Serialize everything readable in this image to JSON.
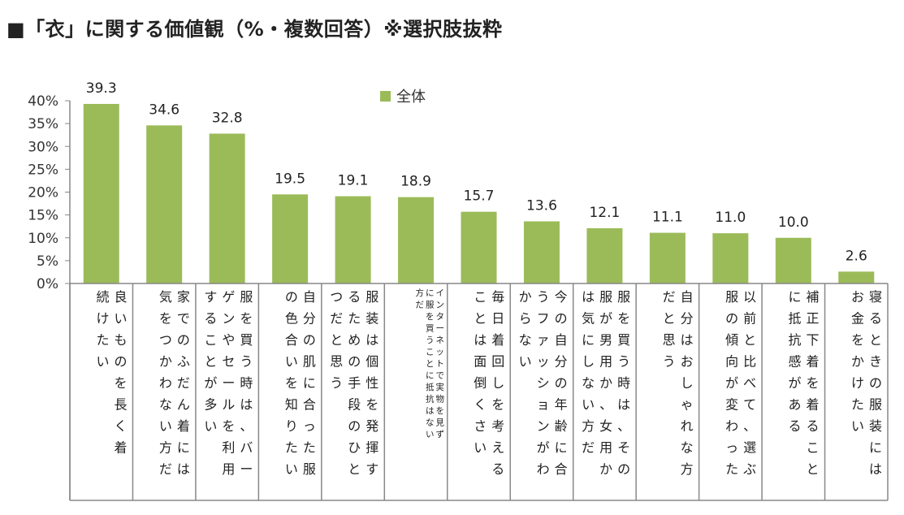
{
  "title": "■「衣」に関する価値観（%・複数回答）※選択肢抜粋",
  "chart_data": {
    "type": "bar",
    "title": "■「衣」に関する価値観（%・複数回答）※選択肢抜粋",
    "xlabel": "",
    "ylabel": "",
    "ylim": [
      0,
      40
    ],
    "yticks": [
      "0%",
      "5%",
      "10%",
      "15%",
      "20%",
      "25%",
      "30%",
      "35%",
      "40%"
    ],
    "legend_position": "top-center",
    "grid": false,
    "bar_color": "#9BBB59",
    "categories": [
      "良いものを長く着続けたい",
      "家でのふだん着には気をつかわない方だ",
      "服を買う時は、バーゲンやセールを利用することが多い",
      "自分の肌に合った服の色合いを知りたい",
      "服装は個性を発揮するための手段のひとつだと思う",
      "インターネットで実物を見ずに服を買うことに抵抗はない方だ",
      "毎日着回しを考えることは面倒くさい",
      "今の自分の年齢に合うファッションがわからない",
      "服を買う時は、その服が男用か、女用かは気にしない方だ",
      "自分はおしゃれな方だと思う",
      "以前と比べて、選ぶ服の傾向が変わった",
      "補正下着を着ることに抵抗感がある",
      "寝るときの服装にはお金をかけたい"
    ],
    "series": [
      {
        "name": "全体",
        "values": [
          39.3,
          34.6,
          32.8,
          19.5,
          19.1,
          18.9,
          15.7,
          13.6,
          12.1,
          11.1,
          11.0,
          10.0,
          2.6
        ]
      }
    ],
    "data_labels": [
      "39.3",
      "34.6",
      "32.8",
      "19.5",
      "19.1",
      "18.9",
      "15.7",
      "13.6",
      "12.1",
      "11.1",
      "11.0",
      "10.0",
      "2.6"
    ],
    "category_columns": [
      [
        "良いものを長く着",
        "続けたい"
      ],
      [
        "家でのふだん着には",
        "気をつかわない方だ"
      ],
      [
        "服を買う時は、バー",
        "ゲンやセールを利用",
        "することが多い"
      ],
      [
        "自分の肌に合った服",
        "の色合いを知りたい"
      ],
      [
        "服装は個性を発揮す",
        "るための手段のひと",
        "つだと思う"
      ],
      [
        "インターネットで実物を見ず",
        "に服を買うことに抵抗はない",
        "方だ"
      ],
      [
        "毎日着回しを考える",
        "ことは面倒くさい"
      ],
      [
        "今の自分の年齢に合",
        "うファッションがわ",
        "からない"
      ],
      [
        "服を買う時は、その",
        "服が男用か、女用か",
        "は気にしない方だ"
      ],
      [
        "自分はおしゃれな方",
        "だと思う"
      ],
      [
        "以前と比べて、選ぶ",
        "服の傾向が変わった"
      ],
      [
        "補正下着を着ること",
        "に抵抗感がある"
      ],
      [
        "寝るときの服装には",
        "お金をかけたい"
      ]
    ]
  }
}
